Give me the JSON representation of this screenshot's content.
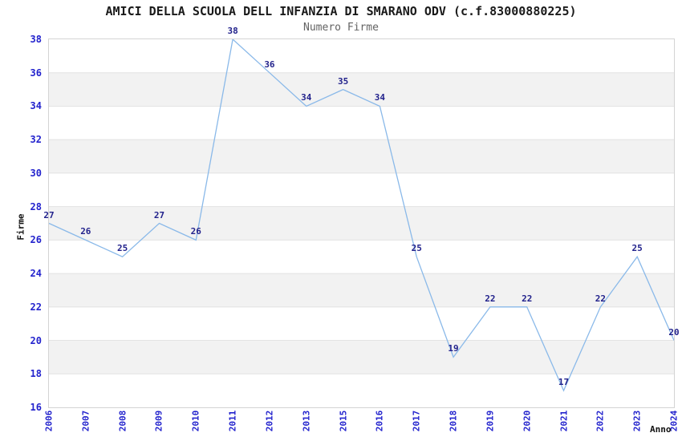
{
  "chart_data": {
    "type": "line",
    "title": "AMICI DELLA SCUOLA DELL INFANZIA DI SMARANO ODV (c.f.83000880225)",
    "subtitle": "Numero Firme",
    "xlabel": "Anno",
    "ylabel": "Firme",
    "categories": [
      "2006",
      "2007",
      "2008",
      "2009",
      "2010",
      "2011",
      "2012",
      "2013",
      "2015",
      "2016",
      "2017",
      "2018",
      "2019",
      "2020",
      "2021",
      "2022",
      "2023",
      "2024"
    ],
    "values": [
      27,
      26,
      25,
      27,
      26,
      38,
      36,
      34,
      35,
      34,
      25,
      19,
      22,
      22,
      17,
      22,
      25,
      20
    ],
    "point_labels": [
      "27",
      "26",
      "25",
      "27",
      "26",
      "38",
      "36",
      "34",
      "35",
      "34",
      "25",
      "19",
      "22",
      "22",
      "17",
      "22",
      "25",
      "20"
    ],
    "y_ticks": [
      38,
      36,
      34,
      32,
      30,
      28,
      26,
      24,
      22,
      20,
      18,
      16
    ],
    "ylim": [
      16,
      38
    ],
    "grid": "horizontal-alternating-bands",
    "legend": "none",
    "colors": {
      "line": "#8ab9e9",
      "point_label": "#22228c",
      "tick_label": "#2323cd",
      "band_gray": "#f2f2f2",
      "band_white": "#ffffff",
      "gridline": "#e3e3e3",
      "plot_border": "#d4d4d4",
      "title": "#1a1a1a",
      "subtitle": "#636363"
    }
  }
}
